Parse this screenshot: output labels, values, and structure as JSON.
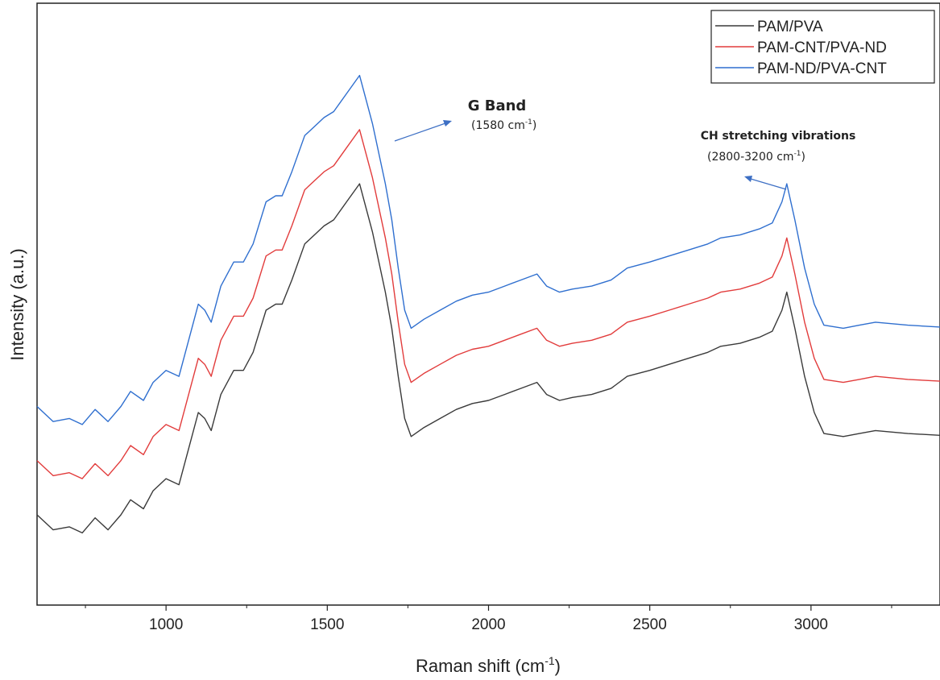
{
  "chart_data": {
    "type": "line",
    "xlabel": "Raman shift (cm",
    "xlabel_sup": "-1",
    "xlabel_end": ")",
    "ylabel": "Intensity (a.u.)",
    "xlim": [
      600,
      3400
    ],
    "ylim": [
      0,
      100
    ],
    "x_ticks": [
      1000,
      1500,
      2000,
      2500,
      3000
    ],
    "x_minor_ticks": [
      750,
      1250,
      1750,
      2250,
      2750,
      3250
    ],
    "y_ticks_shown": false,
    "grid": false,
    "legend_position": "top-right",
    "series": [
      {
        "name": "PAM/PVA",
        "color": "#3a3a3a",
        "points": [
          [
            600,
            15
          ],
          [
            650,
            12.5
          ],
          [
            700,
            13
          ],
          [
            740,
            12
          ],
          [
            780,
            14.5
          ],
          [
            820,
            12.5
          ],
          [
            860,
            15
          ],
          [
            890,
            17.5
          ],
          [
            930,
            16
          ],
          [
            960,
            19
          ],
          [
            1000,
            21
          ],
          [
            1040,
            20
          ],
          [
            1070,
            26
          ],
          [
            1100,
            32
          ],
          [
            1120,
            31
          ],
          [
            1140,
            29
          ],
          [
            1170,
            35
          ],
          [
            1210,
            39
          ],
          [
            1240,
            39
          ],
          [
            1270,
            42
          ],
          [
            1310,
            49
          ],
          [
            1340,
            50
          ],
          [
            1360,
            50
          ],
          [
            1390,
            54
          ],
          [
            1430,
            60
          ],
          [
            1460,
            61.5
          ],
          [
            1490,
            63
          ],
          [
            1520,
            64
          ],
          [
            1560,
            67
          ],
          [
            1600,
            70
          ],
          [
            1640,
            62
          ],
          [
            1680,
            52
          ],
          [
            1700,
            46
          ],
          [
            1720,
            38
          ],
          [
            1740,
            31
          ],
          [
            1760,
            28
          ],
          [
            1800,
            29.5
          ],
          [
            1850,
            31
          ],
          [
            1900,
            32.5
          ],
          [
            1950,
            33.5
          ],
          [
            2000,
            34
          ],
          [
            2050,
            35
          ],
          [
            2100,
            36
          ],
          [
            2150,
            37
          ],
          [
            2180,
            35
          ],
          [
            2220,
            34
          ],
          [
            2260,
            34.5
          ],
          [
            2320,
            35
          ],
          [
            2380,
            36
          ],
          [
            2430,
            38
          ],
          [
            2500,
            39
          ],
          [
            2560,
            40
          ],
          [
            2620,
            41
          ],
          [
            2680,
            42
          ],
          [
            2720,
            43
          ],
          [
            2780,
            43.5
          ],
          [
            2840,
            44.5
          ],
          [
            2880,
            45.5
          ],
          [
            2910,
            49
          ],
          [
            2925,
            52
          ],
          [
            2950,
            46
          ],
          [
            2980,
            38
          ],
          [
            3010,
            32
          ],
          [
            3040,
            28.5
          ],
          [
            3100,
            28
          ],
          [
            3150,
            28.5
          ],
          [
            3200,
            29
          ],
          [
            3300,
            28.5
          ],
          [
            3400,
            28.2
          ]
        ]
      },
      {
        "name": "PAM-CNT/PVA-ND",
        "color": "#e23c3c",
        "points": [
          [
            600,
            24
          ],
          [
            650,
            21.5
          ],
          [
            700,
            22
          ],
          [
            740,
            21
          ],
          [
            780,
            23.5
          ],
          [
            820,
            21.5
          ],
          [
            860,
            24
          ],
          [
            890,
            26.5
          ],
          [
            930,
            25
          ],
          [
            960,
            28
          ],
          [
            1000,
            30
          ],
          [
            1040,
            29
          ],
          [
            1070,
            35
          ],
          [
            1100,
            41
          ],
          [
            1120,
            40
          ],
          [
            1140,
            38
          ],
          [
            1170,
            44
          ],
          [
            1210,
            48
          ],
          [
            1240,
            48
          ],
          [
            1270,
            51
          ],
          [
            1310,
            58
          ],
          [
            1340,
            59
          ],
          [
            1360,
            59
          ],
          [
            1390,
            63
          ],
          [
            1430,
            69
          ],
          [
            1460,
            70.5
          ],
          [
            1490,
            72
          ],
          [
            1520,
            73
          ],
          [
            1560,
            76
          ],
          [
            1600,
            79
          ],
          [
            1640,
            71
          ],
          [
            1680,
            61
          ],
          [
            1700,
            55
          ],
          [
            1720,
            47
          ],
          [
            1740,
            40
          ],
          [
            1760,
            37
          ],
          [
            1800,
            38.5
          ],
          [
            1850,
            40
          ],
          [
            1900,
            41.5
          ],
          [
            1950,
            42.5
          ],
          [
            2000,
            43
          ],
          [
            2050,
            44
          ],
          [
            2100,
            45
          ],
          [
            2150,
            46
          ],
          [
            2180,
            44
          ],
          [
            2220,
            43
          ],
          [
            2260,
            43.5
          ],
          [
            2320,
            44
          ],
          [
            2380,
            45
          ],
          [
            2430,
            47
          ],
          [
            2500,
            48
          ],
          [
            2560,
            49
          ],
          [
            2620,
            50
          ],
          [
            2680,
            51
          ],
          [
            2720,
            52
          ],
          [
            2780,
            52.5
          ],
          [
            2840,
            53.5
          ],
          [
            2880,
            54.5
          ],
          [
            2910,
            58
          ],
          [
            2925,
            61
          ],
          [
            2950,
            55
          ],
          [
            2980,
            47
          ],
          [
            3010,
            41
          ],
          [
            3040,
            37.5
          ],
          [
            3100,
            37
          ],
          [
            3150,
            37.5
          ],
          [
            3200,
            38
          ],
          [
            3300,
            37.5
          ],
          [
            3400,
            37.2
          ]
        ]
      },
      {
        "name": "PAM-ND/PVA-CNT",
        "color": "#2f6fcf",
        "points": [
          [
            600,
            33
          ],
          [
            650,
            30.5
          ],
          [
            700,
            31
          ],
          [
            740,
            30
          ],
          [
            780,
            32.5
          ],
          [
            820,
            30.5
          ],
          [
            860,
            33
          ],
          [
            890,
            35.5
          ],
          [
            930,
            34
          ],
          [
            960,
            37
          ],
          [
            1000,
            39
          ],
          [
            1040,
            38
          ],
          [
            1070,
            44
          ],
          [
            1100,
            50
          ],
          [
            1120,
            49
          ],
          [
            1140,
            47
          ],
          [
            1170,
            53
          ],
          [
            1210,
            57
          ],
          [
            1240,
            57
          ],
          [
            1270,
            60
          ],
          [
            1310,
            67
          ],
          [
            1340,
            68
          ],
          [
            1360,
            68
          ],
          [
            1390,
            72
          ],
          [
            1430,
            78
          ],
          [
            1460,
            79.5
          ],
          [
            1490,
            81
          ],
          [
            1520,
            82
          ],
          [
            1560,
            85
          ],
          [
            1600,
            88
          ],
          [
            1640,
            80
          ],
          [
            1680,
            70
          ],
          [
            1700,
            64
          ],
          [
            1720,
            56
          ],
          [
            1740,
            49
          ],
          [
            1760,
            46
          ],
          [
            1800,
            47.5
          ],
          [
            1850,
            49
          ],
          [
            1900,
            50.5
          ],
          [
            1950,
            51.5
          ],
          [
            2000,
            52
          ],
          [
            2050,
            53
          ],
          [
            2100,
            54
          ],
          [
            2150,
            55
          ],
          [
            2180,
            53
          ],
          [
            2220,
            52
          ],
          [
            2260,
            52.5
          ],
          [
            2320,
            53
          ],
          [
            2380,
            54
          ],
          [
            2430,
            56
          ],
          [
            2500,
            57
          ],
          [
            2560,
            58
          ],
          [
            2620,
            59
          ],
          [
            2680,
            60
          ],
          [
            2720,
            61
          ],
          [
            2780,
            61.5
          ],
          [
            2840,
            62.5
          ],
          [
            2880,
            63.5
          ],
          [
            2910,
            67
          ],
          [
            2925,
            70
          ],
          [
            2950,
            64
          ],
          [
            2980,
            56
          ],
          [
            3010,
            50
          ],
          [
            3040,
            46.5
          ],
          [
            3100,
            46
          ],
          [
            3150,
            46.5
          ],
          [
            3200,
            47
          ],
          [
            3300,
            46.5
          ],
          [
            3400,
            46.2
          ]
        ]
      }
    ],
    "annotations": [
      {
        "id": "g-band",
        "title": "G Band",
        "sub": "(1580 cm",
        "sub_sup": "-1",
        "sub_end": ")",
        "arrow_color": "#3d6fc4"
      },
      {
        "id": "ch",
        "title": "CH stretching vibrations",
        "sub": "(2800-3200 cm",
        "sub_sup": "-1",
        "sub_end": ")",
        "arrow_color": "#3d6fc4"
      }
    ]
  }
}
